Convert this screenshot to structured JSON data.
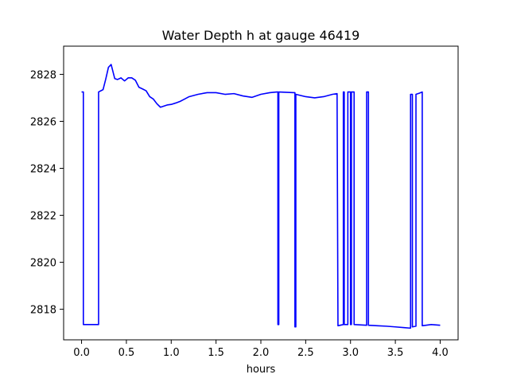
{
  "chart_data": {
    "type": "line",
    "title": "Water Depth h at gauge 46419",
    "xlabel": "hours",
    "ylabel": "",
    "xlim": [
      -0.2,
      4.2
    ],
    "ylim": [
      2816.7,
      2829.2
    ],
    "grid": false,
    "xticks": [
      0.0,
      0.5,
      1.0,
      1.5,
      2.0,
      2.5,
      3.0,
      3.5,
      4.0
    ],
    "xtick_labels": [
      "0.0",
      "0.5",
      "1.0",
      "1.5",
      "2.0",
      "2.5",
      "3.0",
      "3.5",
      "4.0"
    ],
    "yticks": [
      2818,
      2820,
      2822,
      2824,
      2826,
      2828
    ],
    "ytick_labels": [
      "2818",
      "2820",
      "2822",
      "2824",
      "2826",
      "2828"
    ],
    "series": [
      {
        "color": "#0000ff",
        "x": [
          0.0,
          0.02,
          0.02,
          0.19,
          0.19,
          0.24,
          0.27,
          0.3,
          0.33,
          0.37,
          0.4,
          0.44,
          0.48,
          0.52,
          0.56,
          0.6,
          0.64,
          0.68,
          0.72,
          0.76,
          0.8,
          0.84,
          0.88,
          0.92,
          0.96,
          1.0,
          1.05,
          1.1,
          1.15,
          1.2,
          1.3,
          1.4,
          1.5,
          1.6,
          1.7,
          1.8,
          1.9,
          2.0,
          2.1,
          2.18,
          2.19,
          2.19,
          2.2,
          2.2,
          2.37,
          2.38,
          2.38,
          2.39,
          2.39,
          2.5,
          2.6,
          2.7,
          2.8,
          2.85,
          2.86,
          2.86,
          2.92,
          2.92,
          2.93,
          2.93,
          2.97,
          2.97,
          3.0,
          3.0,
          3.01,
          3.01,
          3.04,
          3.04,
          3.18,
          3.18,
          3.2,
          3.2,
          3.3,
          3.4,
          3.5,
          3.6,
          3.66,
          3.67,
          3.67,
          3.69,
          3.69,
          3.73,
          3.73,
          3.77,
          3.8,
          3.8,
          3.9,
          4.0
        ],
        "y": [
          2827.25,
          2827.25,
          2817.35,
          2817.35,
          2827.25,
          2827.35,
          2827.8,
          2828.3,
          2828.42,
          2827.82,
          2827.78,
          2827.85,
          2827.72,
          2827.85,
          2827.85,
          2827.75,
          2827.45,
          2827.38,
          2827.3,
          2827.05,
          2826.95,
          2826.75,
          2826.6,
          2826.65,
          2826.7,
          2826.72,
          2826.78,
          2826.85,
          2826.95,
          2827.05,
          2827.15,
          2827.22,
          2827.22,
          2827.15,
          2827.18,
          2827.08,
          2827.02,
          2827.15,
          2827.22,
          2827.25,
          2827.25,
          2817.35,
          2817.35,
          2827.25,
          2827.22,
          2827.22,
          2817.25,
          2817.25,
          2827.15,
          2827.05,
          2827.0,
          2827.05,
          2827.15,
          2827.18,
          2817.3,
          2817.3,
          2817.35,
          2827.25,
          2827.25,
          2817.35,
          2817.35,
          2827.25,
          2827.25,
          2817.35,
          2817.35,
          2827.25,
          2827.25,
          2817.35,
          2817.32,
          2827.25,
          2827.25,
          2817.32,
          2817.3,
          2817.28,
          2817.25,
          2817.22,
          2817.2,
          2817.2,
          2827.15,
          2827.15,
          2817.25,
          2817.28,
          2827.15,
          2827.2,
          2827.25,
          2817.3,
          2817.35,
          2817.32
        ]
      }
    ]
  }
}
